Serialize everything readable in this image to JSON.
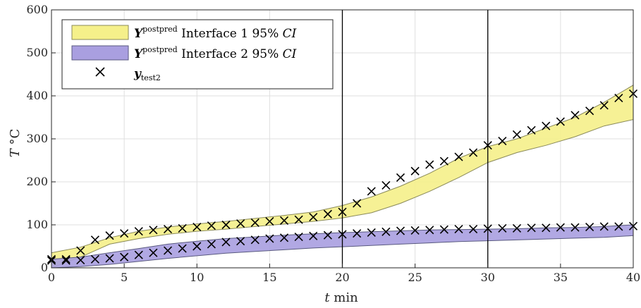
{
  "chart_data": {
    "type": "area",
    "title": "",
    "xlabel": "t min",
    "ylabel": "T °C",
    "xlim": [
      0,
      40
    ],
    "ylim": [
      0,
      600
    ],
    "xticks": [
      0,
      5,
      10,
      15,
      20,
      25,
      30,
      35,
      40
    ],
    "yticks": [
      0,
      100,
      200,
      300,
      400,
      500,
      600
    ],
    "xtick_labels": [
      "0",
      "5",
      "10",
      "15",
      "20",
      "25",
      "30",
      "35",
      "40"
    ],
    "ytick_labels": [
      "0",
      "100",
      "200",
      "300",
      "400",
      "500",
      "600"
    ],
    "grid": true,
    "legend_position": "top-left",
    "vertical_lines": [
      20,
      30
    ],
    "legend": {
      "band1_main": "Y",
      "band1_sup": "postpred",
      "band1_text": " Interface 1 95% ",
      "band1_ci": "CI",
      "band2_main": "Y",
      "band2_sup": "postpred",
      "band2_text": " Interface 2 95% ",
      "band2_ci": "CI",
      "marker_main": "y",
      "marker_sub": "test2"
    },
    "bands": [
      {
        "name": "Interface 1 95% CI",
        "color": "#f5f08a",
        "edge": "#8a8a5a",
        "x": [
          0,
          2,
          4,
          6,
          8,
          10,
          12,
          14,
          16,
          18,
          20,
          22,
          24,
          26,
          28,
          30,
          32,
          34,
          36,
          38,
          40
        ],
        "lower": [
          0,
          25,
          55,
          68,
          78,
          85,
          90,
          96,
          102,
          108,
          116,
          128,
          150,
          178,
          210,
          245,
          268,
          285,
          305,
          330,
          345
        ],
        "upper": [
          35,
          48,
          70,
          85,
          95,
          102,
          108,
          115,
          122,
          130,
          145,
          165,
          190,
          220,
          255,
          282,
          300,
          325,
          350,
          385,
          425
        ]
      },
      {
        "name": "Interface 2 95% CI",
        "color": "#a99fe0",
        "edge": "#5a5a80",
        "x": [
          0,
          2,
          4,
          6,
          8,
          10,
          12,
          14,
          16,
          18,
          20,
          22,
          24,
          26,
          28,
          30,
          32,
          34,
          36,
          38,
          40
        ],
        "lower": [
          0,
          3,
          8,
          15,
          22,
          28,
          34,
          38,
          42,
          46,
          49,
          52,
          55,
          58,
          61,
          63,
          65,
          67,
          69,
          71,
          75
        ],
        "upper": [
          20,
          25,
          35,
          45,
          55,
          62,
          68,
          72,
          76,
          79,
          82,
          84,
          86,
          88,
          89,
          90,
          91,
          93,
          94,
          96,
          100
        ]
      }
    ],
    "series": [
      {
        "name": "y test2",
        "marker": "x",
        "x": [
          0,
          0,
          1,
          1,
          2,
          2,
          3,
          3,
          4,
          4,
          5,
          5,
          6,
          6,
          7,
          7,
          8,
          8,
          9,
          9,
          10,
          10,
          11,
          11,
          12,
          12,
          13,
          13,
          14,
          14,
          15,
          15,
          16,
          16,
          17,
          17,
          18,
          18,
          19,
          19,
          20,
          20,
          21,
          21,
          22,
          22,
          23,
          23,
          24,
          24,
          25,
          25,
          26,
          26,
          27,
          27,
          28,
          28,
          29,
          29,
          30,
          30,
          31,
          31,
          32,
          32,
          33,
          33,
          34,
          34,
          35,
          35,
          36,
          36,
          37,
          37,
          38,
          38,
          39,
          39,
          40,
          40
        ],
        "y": [
          20,
          17,
          17,
          20,
          40,
          18,
          65,
          20,
          75,
          22,
          80,
          25,
          85,
          30,
          88,
          35,
          90,
          40,
          92,
          45,
          95,
          50,
          98,
          55,
          100,
          60,
          103,
          62,
          105,
          65,
          108,
          68,
          110,
          70,
          112,
          72,
          118,
          74,
          125,
          76,
          130,
          78,
          150,
          80,
          178,
          82,
          192,
          84,
          210,
          86,
          225,
          87,
          240,
          88,
          248,
          89,
          258,
          90,
          268,
          90,
          285,
          91,
          295,
          92,
          310,
          92,
          320,
          93,
          330,
          93,
          340,
          94,
          355,
          94,
          365,
          95,
          378,
          96,
          395,
          96,
          405,
          97
        ]
      }
    ]
  }
}
